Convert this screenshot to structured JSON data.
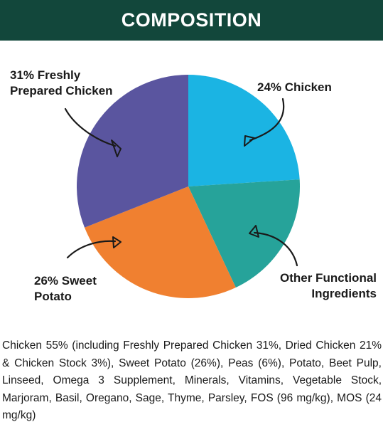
{
  "header": {
    "title": "COMPOSITION"
  },
  "chart_data": {
    "type": "pie",
    "start_angle_deg": 0,
    "direction": "clockwise",
    "slices": [
      {
        "label_lines": [
          "24% Chicken"
        ],
        "value": 24,
        "color": "#1bb4e3"
      },
      {
        "label_lines": [
          "Other Functional",
          "Ingredients"
        ],
        "value": 19,
        "color": "#26a39a"
      },
      {
        "label_lines": [
          "26% Sweet",
          "Potato"
        ],
        "value": 26,
        "color": "#f08030"
      },
      {
        "label_lines": [
          "31% Freshly",
          "Prepared Chicken"
        ],
        "value": 31,
        "color": "#5a559f"
      }
    ]
  },
  "description": "Chicken 55% (including Freshly Prepared Chicken 31%, Dried Chicken 21% & Chicken Stock 3%), Sweet Potato (26%), Peas (6%), Potato, Beet Pulp, Linseed, Omega 3 Supplement, Minerals, Vitamins, Vegetable Stock, Marjoram, Basil, Oregano, Sage, Thyme, Parsley, FOS (96 mg/kg), MOS (24 mg/kg)"
}
